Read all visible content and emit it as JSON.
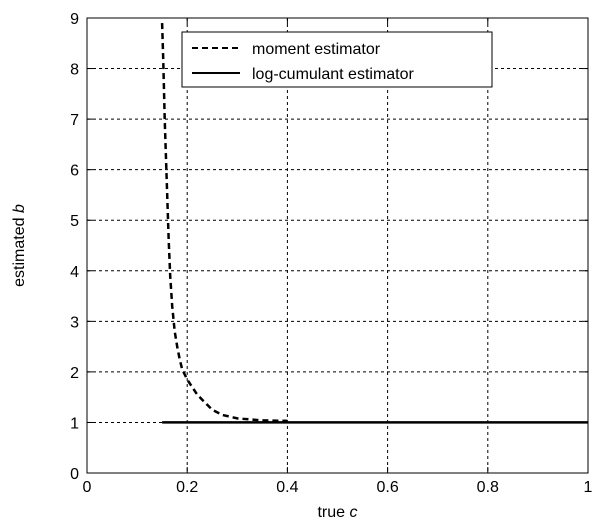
{
  "chart_data": {
    "type": "line",
    "xlabel": "true c",
    "xlabel_parts": [
      "true ",
      "c"
    ],
    "ylabel": "estimated b",
    "ylabel_parts": [
      "estimated ",
      "b"
    ],
    "xlim": [
      0,
      1
    ],
    "ylim": [
      0,
      9
    ],
    "x_ticks": [
      0,
      0.2,
      0.4,
      0.6,
      0.8,
      1
    ],
    "x_tick_labels": [
      "0",
      "0.2",
      "0.4",
      "0.6",
      "0.8",
      "1"
    ],
    "y_ticks": [
      0,
      1,
      2,
      3,
      4,
      5,
      6,
      7,
      8,
      9
    ],
    "y_tick_labels": [
      "0",
      "1",
      "2",
      "3",
      "4",
      "5",
      "6",
      "7",
      "8",
      "9"
    ],
    "grid": true,
    "legend_position": "top-right",
    "series": [
      {
        "name": "moment estimator",
        "style": "dashed",
        "color": "#000000",
        "x": [
          0.15,
          0.152,
          0.155,
          0.158,
          0.16,
          0.163,
          0.166,
          0.17,
          0.175,
          0.18,
          0.185,
          0.19,
          0.2,
          0.21,
          0.22,
          0.23,
          0.24,
          0.25,
          0.27,
          0.3,
          0.35,
          0.4
        ],
        "y": [
          8.9,
          8.2,
          7.0,
          6.1,
          5.5,
          4.6,
          3.9,
          3.3,
          2.8,
          2.5,
          2.25,
          2.05,
          1.85,
          1.7,
          1.55,
          1.45,
          1.35,
          1.25,
          1.15,
          1.08,
          1.04,
          1.03
        ]
      },
      {
        "name": "log-cumulant estimator",
        "style": "solid",
        "color": "#000000",
        "x": [
          0.15,
          1.0
        ],
        "y": [
          1.0,
          1.0
        ]
      }
    ]
  }
}
